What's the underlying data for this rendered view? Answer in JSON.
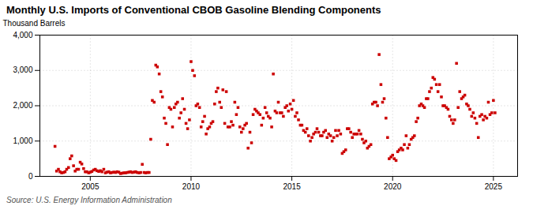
{
  "chart_data": {
    "type": "scatter",
    "title": "Monthly U.S. Imports of Conventional CBOB Gasoline Blending Components",
    "ylabel": "Thousand Barrels",
    "source": "Source: U.S. Energy Information Administration",
    "color": "#CC0000",
    "marker": "square",
    "grid": true,
    "xlim": [
      2002.5,
      2026.2
    ],
    "ylim": [
      0,
      4000
    ],
    "xticks": [
      2005,
      2010,
      2015,
      2020,
      2025
    ],
    "yticks": [
      0,
      {
        "value": 1000,
        "label": "1,000"
      },
      {
        "value": 2000,
        "label": "2,000"
      },
      {
        "value": 3000,
        "label": "3,000"
      },
      {
        "value": 4000,
        "label": "4,000"
      }
    ],
    "x": [
      2003.25,
      2003.33,
      2003.42,
      2003.5,
      2003.58,
      2003.67,
      2003.75,
      2003.83,
      2003.92,
      2004.0,
      2004.08,
      2004.17,
      2004.25,
      2004.33,
      2004.42,
      2004.5,
      2004.58,
      2004.67,
      2004.75,
      2004.83,
      2004.92,
      2005.0,
      2005.08,
      2005.17,
      2005.25,
      2005.33,
      2005.42,
      2005.5,
      2005.58,
      2005.67,
      2005.75,
      2005.83,
      2005.92,
      2006.0,
      2006.08,
      2006.17,
      2006.25,
      2006.33,
      2006.42,
      2006.5,
      2006.58,
      2006.67,
      2006.75,
      2006.83,
      2006.92,
      2007.0,
      2007.08,
      2007.17,
      2007.25,
      2007.33,
      2007.42,
      2007.5,
      2007.58,
      2007.67,
      2007.75,
      2007.83,
      2007.92,
      2008.0,
      2008.08,
      2008.17,
      2008.25,
      2008.33,
      2008.42,
      2008.5,
      2008.58,
      2008.67,
      2008.75,
      2008.83,
      2008.92,
      2009.0,
      2009.08,
      2009.17,
      2009.25,
      2009.33,
      2009.42,
      2009.5,
      2009.58,
      2009.67,
      2009.75,
      2009.83,
      2009.92,
      2010.0,
      2010.08,
      2010.17,
      2010.25,
      2010.33,
      2010.42,
      2010.5,
      2010.58,
      2010.67,
      2010.75,
      2010.83,
      2010.92,
      2011.0,
      2011.08,
      2011.17,
      2011.25,
      2011.33,
      2011.42,
      2011.5,
      2011.58,
      2011.67,
      2011.75,
      2011.83,
      2011.92,
      2012.0,
      2012.08,
      2012.17,
      2012.25,
      2012.33,
      2012.42,
      2012.5,
      2012.58,
      2012.67,
      2012.75,
      2012.83,
      2012.92,
      2013.0,
      2013.08,
      2013.17,
      2013.25,
      2013.33,
      2013.42,
      2013.5,
      2013.58,
      2013.67,
      2013.75,
      2013.83,
      2013.92,
      2014.0,
      2014.08,
      2014.17,
      2014.25,
      2014.33,
      2014.42,
      2014.5,
      2014.58,
      2014.67,
      2014.75,
      2014.83,
      2014.92,
      2015.0,
      2015.08,
      2015.17,
      2015.25,
      2015.33,
      2015.42,
      2015.5,
      2015.58,
      2015.67,
      2015.75,
      2015.83,
      2015.92,
      2016.0,
      2016.08,
      2016.17,
      2016.25,
      2016.33,
      2016.42,
      2016.5,
      2016.58,
      2016.67,
      2016.75,
      2016.83,
      2016.92,
      2017.0,
      2017.08,
      2017.17,
      2017.25,
      2017.33,
      2017.42,
      2017.5,
      2017.58,
      2017.67,
      2017.75,
      2017.83,
      2017.92,
      2018.0,
      2018.08,
      2018.17,
      2018.25,
      2018.33,
      2018.42,
      2018.5,
      2018.58,
      2018.67,
      2018.75,
      2018.83,
      2018.92,
      2019.0,
      2019.08,
      2019.17,
      2019.25,
      2019.33,
      2019.42,
      2019.5,
      2019.58,
      2019.67,
      2019.75,
      2019.83,
      2019.92,
      2020.0,
      2020.08,
      2020.17,
      2020.25,
      2020.33,
      2020.42,
      2020.5,
      2020.58,
      2020.67,
      2020.75,
      2020.83,
      2020.92,
      2021.0,
      2021.08,
      2021.17,
      2021.25,
      2021.33,
      2021.42,
      2021.5,
      2021.58,
      2021.67,
      2021.75,
      2021.83,
      2021.92,
      2022.0,
      2022.08,
      2022.17,
      2022.25,
      2022.33,
      2022.42,
      2022.5,
      2022.58,
      2022.67,
      2022.75,
      2022.83,
      2022.92,
      2023.0,
      2023.08,
      2023.17,
      2023.25,
      2023.33,
      2023.42,
      2023.5,
      2023.58,
      2023.67,
      2023.75,
      2023.83,
      2023.92,
      2024.0,
      2024.08,
      2024.17,
      2024.25,
      2024.33,
      2024.42,
      2024.5,
      2024.58,
      2024.67,
      2024.75,
      2024.83,
      2024.92,
      2025.0,
      2025.08
    ],
    "values": [
      850,
      150,
      200,
      130,
      100,
      110,
      130,
      200,
      250,
      500,
      580,
      300,
      150,
      200,
      200,
      400,
      350,
      220,
      130,
      130,
      100,
      120,
      140,
      180,
      200,
      160,
      140,
      160,
      130,
      200,
      100,
      120,
      130,
      100,
      110,
      120,
      110,
      130,
      120,
      80,
      90,
      100,
      100,
      110,
      120,
      130,
      110,
      120,
      130,
      110,
      100,
      110,
      340,
      110,
      100,
      110,
      110,
      1050,
      2150,
      2100,
      3150,
      3100,
      2900,
      2400,
      2250,
      1650,
      1500,
      900,
      1950,
      1900,
      1400,
      1950,
      2050,
      2100,
      1650,
      1800,
      2200,
      1900,
      1500,
      1350,
      1600,
      3250,
      3000,
      2850,
      2000,
      2050,
      1950,
      1400,
      1550,
      1700,
      1200,
      1350,
      1400,
      1500,
      1550,
      2050,
      2400,
      2500,
      2100,
      1950,
      2450,
      1500,
      2400,
      1400,
      1400,
      1550,
      1450,
      2100,
      1750,
      1950,
      1400,
      1250,
      1350,
      1450,
      1500,
      800,
      1250,
      950,
      1750,
      1900,
      1850,
      1800,
      1750,
      1450,
      1650,
      1950,
      1800,
      1700,
      1650,
      1400,
      2900,
      1850,
      1800,
      2100,
      1800,
      1800,
      1700,
      1950,
      2000,
      1850,
      2050,
      1900,
      2150,
      1700,
      1800,
      1600,
      1450,
      1450,
      1300,
      1250,
      1350,
      1150,
      1000,
      1100,
      1200,
      1250,
      1350,
      1250,
      1150,
      1150,
      1250,
      1300,
      1100,
      1200,
      1150,
      1000,
      1100,
      1300,
      1150,
      1300,
      1200,
      650,
      700,
      750,
      1350,
      1350,
      1250,
      1100,
      1200,
      1200,
      1200,
      1300,
      1200,
      1050,
      950,
      1000,
      800,
      850,
      900,
      2050,
      2100,
      2100,
      2000,
      3450,
      2600,
      2100,
      2200,
      1650,
      1100,
      500,
      550,
      600,
      500,
      450,
      700,
      750,
      800,
      750,
      900,
      1150,
      800,
      900,
      1050,
      1100,
      1150,
      1550,
      1650,
      2000,
      2050,
      2000,
      1950,
      2200,
      2200,
      2400,
      2500,
      2800,
      2750,
      2600,
      2400,
      2600,
      2250,
      2000,
      2000,
      1950,
      1900,
      1700,
      1600,
      1500,
      1600,
      3200,
      1950,
      2400,
      2200,
      2250,
      2300,
      2050,
      2000,
      1900,
      1700,
      1800,
      1650,
      1500,
      1100,
      1700,
      1750,
      1600,
      1700,
      1650,
      2100,
      1750,
      1800,
      2150,
      1800
    ]
  }
}
